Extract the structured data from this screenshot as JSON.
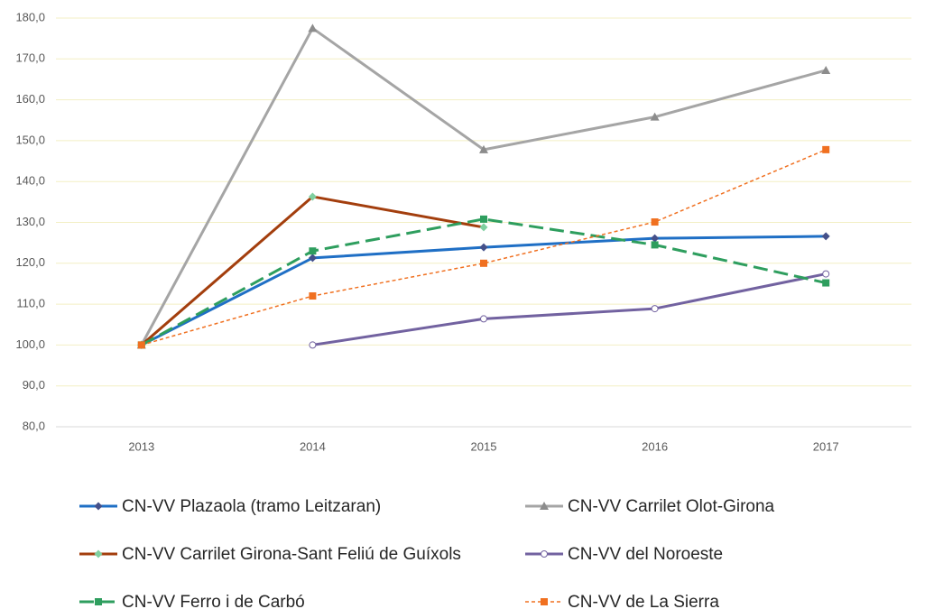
{
  "chart_data": {
    "type": "line",
    "categories": [
      "2013",
      "2014",
      "2015",
      "2016",
      "2017"
    ],
    "ylim": [
      80,
      180
    ],
    "yticks": [
      {
        "value": 80,
        "label": "80,0"
      },
      {
        "value": 90,
        "label": "90,0"
      },
      {
        "value": 100,
        "label": "100,0"
      },
      {
        "value": 110,
        "label": "110,0"
      },
      {
        "value": 120,
        "label": "120,0"
      },
      {
        "value": 130,
        "label": "130,0"
      },
      {
        "value": 140,
        "label": "140,0"
      },
      {
        "value": 150,
        "label": "150,0"
      },
      {
        "value": 160,
        "label": "160,0"
      },
      {
        "value": 170,
        "label": "170,0"
      },
      {
        "value": 180,
        "label": "180,0"
      }
    ],
    "grid": true,
    "legend": "bottom",
    "series": [
      {
        "name": "CN-VV Plazaola (tramo Leitzaran)",
        "color": "#1f6fc5",
        "marker": "diamond",
        "marker_color": "#44508a",
        "dash": "solid",
        "values": [
          100,
          121.3,
          123.9,
          126.1,
          126.6
        ]
      },
      {
        "name": "CN-VV Carrilet Olot-Girona",
        "color": "#a5a5a5",
        "marker": "triangle",
        "marker_color": "#8c8c8c",
        "dash": "solid",
        "values": [
          100,
          177.5,
          147.8,
          155.8,
          167.2
        ]
      },
      {
        "name": "CN-VV Carrilet Girona-Sant Feliú de Guíxols",
        "color": "#a33e0d",
        "marker": "diamond",
        "marker_color": "#7fd0a0",
        "dash": "solid",
        "values": [
          100,
          136.3,
          128.8,
          null,
          null
        ]
      },
      {
        "name": "CN-VV del Noroeste",
        "color": "#7262a0",
        "marker": "circle",
        "marker_color": "#7262a0",
        "dash": "solid",
        "values": [
          null,
          100,
          106.4,
          108.9,
          117.4
        ]
      },
      {
        "name": "CN-VV Ferro i de Carbó",
        "color": "#2e9e5e",
        "marker": "square",
        "marker_color": "#2e9e5e",
        "dash": "dashed",
        "values": [
          100,
          123,
          130.8,
          124.5,
          115.2
        ]
      },
      {
        "name": "CN-VV de La Sierra",
        "color": "#f07020",
        "marker": "square",
        "marker_color": "#f07020",
        "dash": "dotted",
        "values": [
          100,
          112,
          120,
          130.1,
          147.8
        ]
      }
    ]
  }
}
